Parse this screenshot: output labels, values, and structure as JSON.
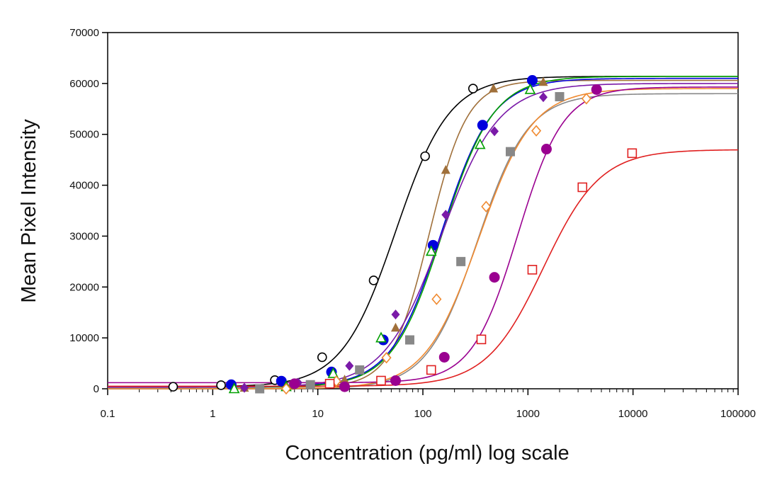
{
  "chart_data": {
    "type": "scatter",
    "title": "",
    "xlabel": "Concentration (pg/ml) log scale",
    "ylabel": "Mean Pixel Intensity",
    "xscale": "log",
    "xlim": [
      0.1,
      100000
    ],
    "ylim": [
      0,
      70000
    ],
    "grid": false,
    "legend": "none",
    "x_tick_labels": [
      "0.1",
      "1",
      "10",
      "100",
      "1000",
      "10000",
      "100000"
    ],
    "y_tick_labels": [
      "0",
      "10000",
      "20000",
      "30000",
      "40000",
      "50000",
      "60000",
      "70000"
    ],
    "series": [
      {
        "color": "#000000",
        "marker": "open-circle",
        "bottom": 400,
        "top": 61400,
        "ec50": 55,
        "hill": 1.7,
        "points": [
          [
            0.42,
            400
          ],
          [
            1.2,
            700
          ],
          [
            3.9,
            1700
          ],
          [
            11,
            6200
          ],
          [
            34,
            21300
          ],
          [
            105,
            45700
          ],
          [
            300,
            59000
          ]
        ]
      },
      {
        "color": "#a0703a",
        "marker": "filled-triangle",
        "bottom": 300,
        "top": 60600,
        "ec50": 115,
        "hill": 2.4,
        "points": [
          [
            2.0,
            200
          ],
          [
            5.5,
            600
          ],
          [
            18,
            1800
          ],
          [
            55,
            12000
          ],
          [
            165,
            43000
          ],
          [
            470,
            59000
          ],
          [
            1400,
            60300
          ]
        ]
      },
      {
        "color": "#0000dd",
        "marker": "filled-circle",
        "bottom": 400,
        "top": 61000,
        "ec50": 150,
        "hill": 1.8,
        "points": [
          [
            1.5,
            800
          ],
          [
            4.5,
            1500
          ],
          [
            13.5,
            3300
          ],
          [
            42,
            9600
          ],
          [
            125,
            28200
          ],
          [
            370,
            51800
          ],
          [
            1100,
            60600
          ]
        ]
      },
      {
        "color": "#00a000",
        "marker": "open-triangle",
        "bottom": 300,
        "top": 61400,
        "ec50": 155,
        "hill": 1.8,
        "points": [
          [
            1.6,
            0
          ],
          [
            5,
            400
          ],
          [
            14,
            3000
          ],
          [
            40,
            10000
          ],
          [
            120,
            27000
          ],
          [
            350,
            48000
          ],
          [
            1050,
            58800
          ]
        ]
      },
      {
        "color": "#7a1aa8",
        "marker": "filled-diamond",
        "bottom": 300,
        "top": 60000,
        "ec50": 150,
        "hill": 1.6,
        "points": [
          [
            2.0,
            200
          ],
          [
            6.5,
            1200
          ],
          [
            20,
            4500
          ],
          [
            55,
            14600
          ],
          [
            165,
            34200
          ],
          [
            480,
            50600
          ],
          [
            1400,
            57300
          ]
        ]
      },
      {
        "color": "#888888",
        "marker": "filled-square",
        "bottom": 0,
        "top": 58000,
        "ec50": 330,
        "hill": 1.8,
        "points": [
          [
            2.8,
            0
          ],
          [
            8.5,
            800
          ],
          [
            25,
            3700
          ],
          [
            75,
            9600
          ],
          [
            230,
            25000
          ],
          [
            680,
            46600
          ],
          [
            2000,
            57400
          ]
        ]
      },
      {
        "color": "#f08a30",
        "marker": "open-diamond",
        "bottom": 0,
        "top": 59000,
        "ec50": 340,
        "hill": 1.7,
        "points": [
          [
            5,
            0
          ],
          [
            15,
            1500
          ],
          [
            45,
            6100
          ],
          [
            135,
            17600
          ],
          [
            400,
            35800
          ],
          [
            1200,
            50700
          ],
          [
            3600,
            57000
          ]
        ]
      },
      {
        "color": "#9a0090",
        "marker": "filled-circle",
        "bottom": 1200,
        "top": 59300,
        "ec50": 800,
        "hill": 2.0,
        "points": [
          [
            6,
            1000
          ],
          [
            18,
            400
          ],
          [
            55,
            1600
          ],
          [
            160,
            6200
          ],
          [
            480,
            21900
          ],
          [
            1500,
            47100
          ],
          [
            4500,
            58800
          ]
        ]
      },
      {
        "color": "#e02020",
        "marker": "open-square",
        "bottom": 500,
        "top": 47000,
        "ec50": 1400,
        "hill": 1.6,
        "points": [
          [
            13,
            1000
          ],
          [
            40,
            1600
          ],
          [
            120,
            3700
          ],
          [
            360,
            9700
          ],
          [
            1100,
            23400
          ],
          [
            3300,
            39600
          ],
          [
            9800,
            46300
          ]
        ]
      }
    ]
  }
}
